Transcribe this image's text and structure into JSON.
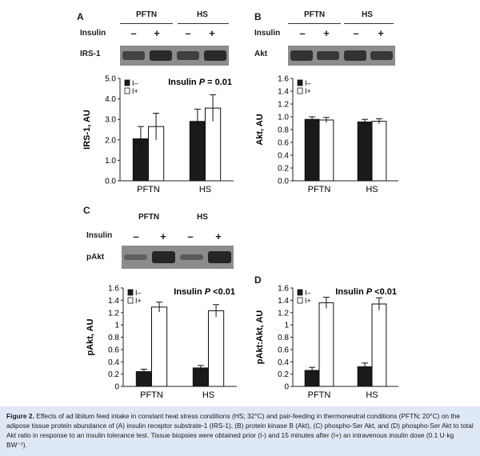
{
  "panels": {
    "A": {
      "letter": "A",
      "groups": [
        "PFTN",
        "HS"
      ],
      "insulin_label": "Insulin",
      "signs": [
        "–",
        "+",
        "–",
        "+"
      ],
      "blot_label": "IRS-1",
      "blot_intensity": [
        0.55,
        0.85,
        0.6,
        0.85
      ]
    },
    "B": {
      "letter": "B",
      "groups": [
        "PFTN",
        "HS"
      ],
      "insulin_label": "Insulin",
      "signs": [
        "–",
        "+",
        "–",
        "+"
      ],
      "blot_label": "Akt",
      "blot_intensity": [
        0.75,
        0.7,
        0.75,
        0.7
      ]
    },
    "C": {
      "letter": "C",
      "groups": [
        "PFTN",
        "HS"
      ],
      "insulin_label": "Insulin",
      "signs": [
        "–",
        "+",
        "–",
        "+"
      ],
      "blot_label": "pAkt",
      "blot_intensity": [
        0.2,
        0.9,
        0.25,
        0.9
      ]
    },
    "D": {
      "letter": "D"
    }
  },
  "chart_data": [
    {
      "id": "A",
      "type": "bar",
      "categories": [
        "PFTN",
        "HS"
      ],
      "series": [
        {
          "name": "I–",
          "values": [
            2.05,
            2.9
          ],
          "errors": [
            0.6,
            0.6
          ],
          "fill": "#1a1a1a"
        },
        {
          "name": "I+",
          "values": [
            2.65,
            3.55
          ],
          "errors": [
            0.65,
            0.65
          ],
          "fill": "#ffffff"
        }
      ],
      "ylabel": "IRS-1, AU",
      "ylim": [
        0,
        5
      ],
      "yticks": [
        "0.0",
        "1.0",
        "2.0",
        "3.0",
        "4.0",
        "5.0"
      ],
      "annotation_prefix": "Insulin ",
      "annotation_p": "P",
      "annotation_suffix": " = 0.01",
      "legend": [
        "I–",
        "I+"
      ]
    },
    {
      "id": "B",
      "type": "bar",
      "categories": [
        "PFTN",
        "HS"
      ],
      "series": [
        {
          "name": "I–",
          "values": [
            0.96,
            0.92
          ],
          "errors": [
            0.04,
            0.04
          ],
          "fill": "#1a1a1a"
        },
        {
          "name": "I+",
          "values": [
            0.95,
            0.93
          ],
          "errors": [
            0.04,
            0.04
          ],
          "fill": "#ffffff"
        }
      ],
      "ylabel": "Akt, AU",
      "ylim": [
        0,
        1.6
      ],
      "yticks": [
        "0.0",
        "0.2",
        "0.4",
        "0.6",
        "0.8",
        "1.0",
        "1.2",
        "1.4",
        "1.6"
      ],
      "legend": [
        "I–",
        "I+"
      ]
    },
    {
      "id": "C",
      "type": "bar",
      "categories": [
        "PFTN",
        "HS"
      ],
      "series": [
        {
          "name": "I–",
          "values": [
            0.24,
            0.3
          ],
          "errors": [
            0.04,
            0.04
          ],
          "fill": "#1a1a1a"
        },
        {
          "name": "I+",
          "values": [
            1.29,
            1.23
          ],
          "errors": [
            0.08,
            0.1
          ],
          "fill": "#ffffff"
        }
      ],
      "ylabel": "pAkt, AU",
      "ylim": [
        0,
        1.6
      ],
      "yticks": [
        "0",
        "0.2",
        "0.4",
        "0.6",
        "0.8",
        "1",
        "1.2",
        "1.4",
        "1.6"
      ],
      "annotation_prefix": "Insulin ",
      "annotation_p": "P",
      "annotation_suffix": " <0.01",
      "legend": [
        "I–",
        "I+"
      ]
    },
    {
      "id": "D",
      "type": "bar",
      "categories": [
        "PFTN",
        "HS"
      ],
      "series": [
        {
          "name": "I–",
          "values": [
            0.26,
            0.32
          ],
          "errors": [
            0.05,
            0.06
          ],
          "fill": "#1a1a1a"
        },
        {
          "name": "I+",
          "values": [
            1.36,
            1.34
          ],
          "errors": [
            0.09,
            0.1
          ],
          "fill": "#ffffff"
        }
      ],
      "ylabel": "pAkt:Akt, AU",
      "ylim": [
        0,
        1.6
      ],
      "yticks": [
        "0",
        "0.2",
        "0.4",
        "0.6",
        "0.8",
        "1",
        "1.2",
        "1.4",
        "1.6"
      ],
      "annotation_prefix": "Insulin ",
      "annotation_p": "P",
      "annotation_suffix": " <0.01",
      "legend": [
        "I–",
        "I+"
      ]
    }
  ],
  "caption": {
    "label": "Figure 2.",
    "text": " Effects of ad libitum feed intake in constant heat stress conditions (HS; 32°C) and pair-feeding in thermoneutral conditions (PFTN; 20°C) on the adipose tissue protein abundance of (A) insulin receptor substrate-1 (IRS-1), (B) protein kinase B (Akt), (C) phospho-Ser Akt, and (D) phospho-Ser Akt to total Akt ratio in response to an insulin tolerance test. Tissue biopsies were obtained prior (I-) and 15 minutes after (I+) an intravenous insulin dose (0.1 U·kg BW⁻¹)."
  },
  "colors": {
    "caption_bg": "#dfe9f5",
    "blot_bg": "#8c8c8c",
    "band": "#1e1e1e"
  }
}
